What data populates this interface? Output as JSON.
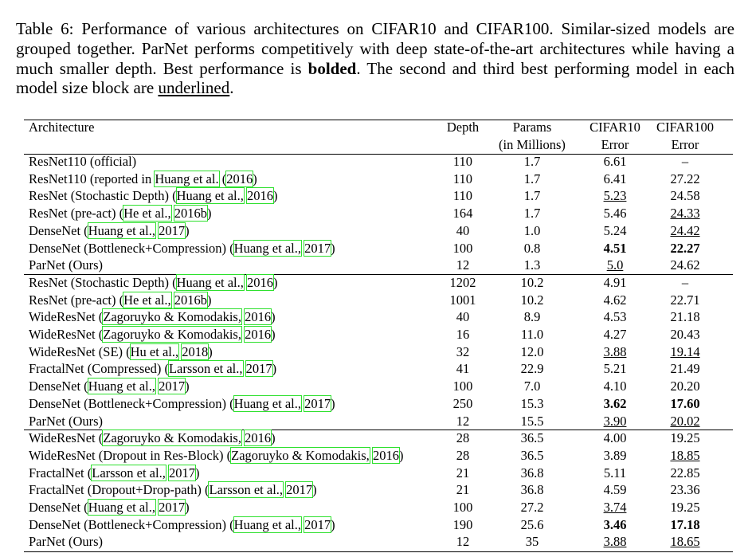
{
  "caption": [
    {
      "text": "Table 6: Performance of various architectures on CIFAR10 and CIFAR100. Similar-sized models are grouped together. ParNet performs competitively with deep state-of-the-art architectures while having a much smaller depth. Best performance is "
    },
    {
      "bold": "bolded"
    },
    {
      "text": ". The second and third best performing model in each model size block are "
    },
    {
      "underline": "underlined"
    },
    {
      "text": "."
    }
  ],
  "table": {
    "header": [
      "Architecture",
      "Depth",
      [
        "Params",
        "(in Millions)"
      ],
      [
        "CIFAR10",
        "Error"
      ],
      [
        "CIFAR100",
        "Error"
      ]
    ],
    "groups": [
      [
        {
          "arch": [
            "ResNet110 (official)"
          ],
          "cells": [
            "110",
            "1.7",
            "6.61",
            "–"
          ]
        },
        {
          "arch": [
            "ResNet110 (reported in ",
            {
              "cite": "Huang et al."
            },
            " (",
            {
              "cite": "2016"
            },
            ")"
          ],
          "cells": [
            "110",
            "1.7",
            "6.41",
            "27.22"
          ]
        },
        {
          "arch": [
            "ResNet (Stochastic Depth) (",
            {
              "cite": "Huang et al.,"
            },
            " ",
            {
              "cite": "2016"
            },
            ")"
          ],
          "cells": [
            "110",
            "1.7",
            {
              "underline": "5.23"
            },
            "24.58"
          ]
        },
        {
          "arch": [
            "ResNet (pre-act) (",
            {
              "cite": "He et al.,"
            },
            " ",
            {
              "cite": "2016b"
            },
            ")"
          ],
          "cells": [
            "164",
            "1.7",
            "5.46",
            {
              "underline": "24.33"
            }
          ]
        },
        {
          "arch": [
            "DenseNet (",
            {
              "cite": "Huang et al.,"
            },
            " ",
            {
              "cite": "2017"
            },
            ")"
          ],
          "cells": [
            "40",
            "1.0",
            "5.24",
            {
              "underline": "24.42"
            }
          ]
        },
        {
          "arch": [
            "DenseNet (Bottleneck+Compression) (",
            {
              "cite": "Huang et al.,"
            },
            " ",
            {
              "cite": "2017"
            },
            ")"
          ],
          "cells": [
            "100",
            "0.8",
            {
              "bold": "4.51"
            },
            {
              "bold": "22.27"
            }
          ]
        },
        {
          "arch": [
            "ParNet (Ours)"
          ],
          "cells": [
            "12",
            "1.3",
            {
              "underline": "5.0"
            },
            "24.62"
          ]
        }
      ],
      [
        {
          "arch": [
            "ResNet (Stochastic Depth) (",
            {
              "cite": "Huang et al.,"
            },
            " ",
            {
              "cite": "2016"
            },
            ")"
          ],
          "cells": [
            "1202",
            "10.2",
            "4.91",
            "–"
          ]
        },
        {
          "arch": [
            "ResNet (pre-act) (",
            {
              "cite": "He et al.,"
            },
            " ",
            {
              "cite": "2016b"
            },
            ")"
          ],
          "cells": [
            "1001",
            "10.2",
            "4.62",
            "22.71"
          ]
        },
        {
          "arch": [
            "WideResNet (",
            {
              "cite": "Zagoruyko & Komodakis,"
            },
            " ",
            {
              "cite": "2016"
            },
            ")"
          ],
          "cells": [
            "40",
            "8.9",
            "4.53",
            "21.18"
          ]
        },
        {
          "arch": [
            "WideResNet (",
            {
              "cite": "Zagoruyko & Komodakis,"
            },
            " ",
            {
              "cite": "2016"
            },
            ")"
          ],
          "cells": [
            "16",
            "11.0",
            "4.27",
            "20.43"
          ]
        },
        {
          "arch": [
            "WideResNet (SE) (",
            {
              "cite": "Hu et al.,"
            },
            " ",
            {
              "cite": "2018"
            },
            ")"
          ],
          "cells": [
            "32",
            "12.0",
            {
              "underline": "3.88"
            },
            {
              "underline": "19.14"
            }
          ]
        },
        {
          "arch": [
            "FractalNet (Compressed) (",
            {
              "cite": "Larsson et al.,"
            },
            " ",
            {
              "cite": "2017"
            },
            ")"
          ],
          "cells": [
            "41",
            "22.9",
            "5.21",
            "21.49"
          ]
        },
        {
          "arch": [
            "DenseNet (",
            {
              "cite": "Huang et al.,"
            },
            " ",
            {
              "cite": "2017"
            },
            ")"
          ],
          "cells": [
            "100",
            "7.0",
            "4.10",
            "20.20"
          ]
        },
        {
          "arch": [
            "DenseNet (Bottleneck+Compression) (",
            {
              "cite": "Huang et al.,"
            },
            " ",
            {
              "cite": "2017"
            },
            ")"
          ],
          "cells": [
            "250",
            "15.3",
            {
              "bold": "3.62"
            },
            {
              "bold": "17.60"
            }
          ]
        },
        {
          "arch": [
            "ParNet (Ours)"
          ],
          "cells": [
            "12",
            "15.5",
            {
              "underline": "3.90"
            },
            {
              "underline": "20.02"
            }
          ]
        }
      ],
      [
        {
          "arch": [
            "WideResNet (",
            {
              "cite": "Zagoruyko & Komodakis,"
            },
            " ",
            {
              "cite": "2016"
            },
            ")"
          ],
          "cells": [
            "28",
            "36.5",
            "4.00",
            "19.25"
          ]
        },
        {
          "arch": [
            "WideResNet (Dropout in Res-Block) (",
            {
              "cite": "Zagoruyko & Komodakis,"
            },
            " ",
            {
              "cite": "2016"
            },
            ")"
          ],
          "cells": [
            "28",
            "36.5",
            "3.89",
            {
              "underline": "18.85"
            }
          ]
        },
        {
          "arch": [
            "FractalNet (",
            {
              "cite": "Larsson et al.,"
            },
            " ",
            {
              "cite": "2017"
            },
            ")"
          ],
          "cells": [
            "21",
            "36.8",
            "5.11",
            "22.85"
          ]
        },
        {
          "arch": [
            "FractalNet (Dropout+Drop-path) (",
            {
              "cite": "Larsson et al.,"
            },
            " ",
            {
              "cite": "2017"
            },
            ")"
          ],
          "cells": [
            "21",
            "36.8",
            "4.59",
            "23.36"
          ]
        },
        {
          "arch": [
            "DenseNet (",
            {
              "cite": "Huang et al.,"
            },
            " ",
            {
              "cite": "2017"
            },
            ")"
          ],
          "cells": [
            "100",
            "27.2",
            {
              "underline": "3.74"
            },
            "19.25"
          ]
        },
        {
          "arch": [
            "DenseNet (Bottleneck+Compression) (",
            {
              "cite": "Huang et al.,"
            },
            " ",
            {
              "cite": "2017"
            },
            ")"
          ],
          "cells": [
            "190",
            "25.6",
            {
              "bold": "3.46"
            },
            {
              "bold": "17.18"
            }
          ]
        },
        {
          "arch": [
            "ParNet (Ours)"
          ],
          "cells": [
            "12",
            "35",
            {
              "underline": "3.88"
            },
            {
              "underline": "18.65"
            }
          ]
        }
      ]
    ]
  }
}
